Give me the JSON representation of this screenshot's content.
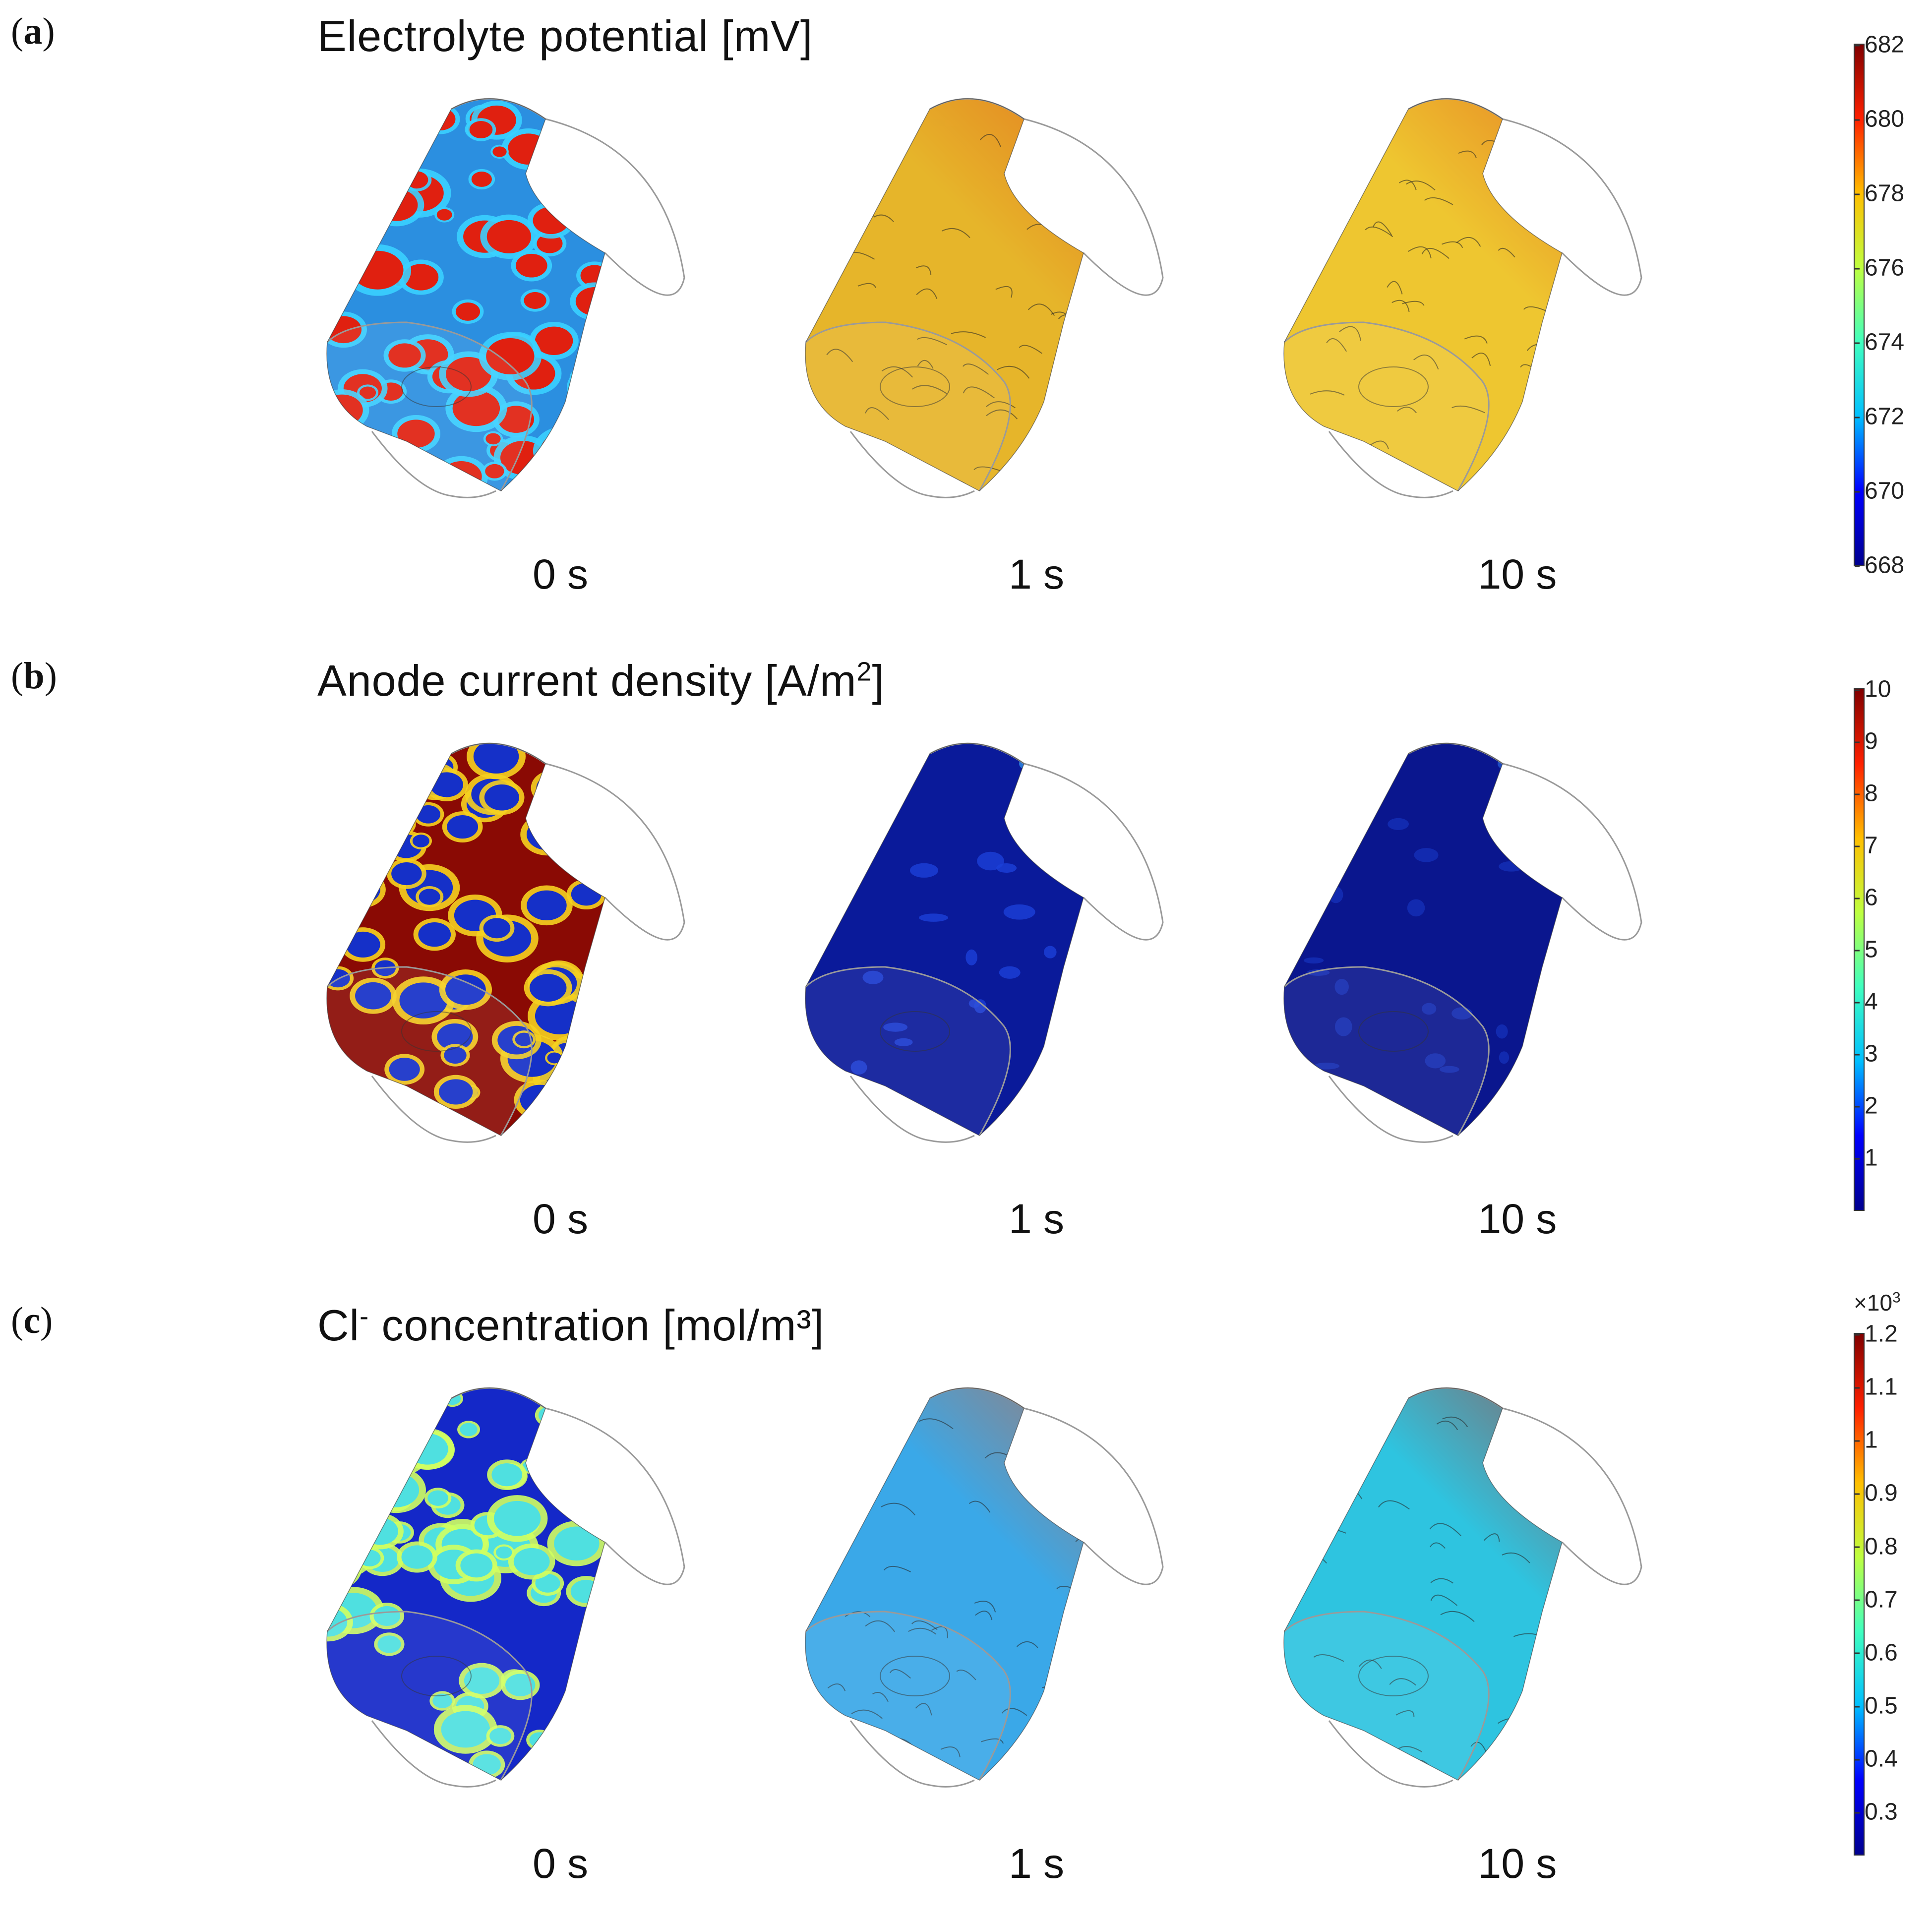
{
  "panels": [
    {
      "id": "a",
      "label_open": "(",
      "label_letter": "a",
      "label_close": ")",
      "title_main": "Electrolyte potential [mV]",
      "title_sup": "",
      "title_after": "",
      "times": [
        "0 s",
        "1 s",
        "10 s"
      ],
      "colorbar": {
        "min": 668,
        "max": 682,
        "ticks": [
          "682",
          "680",
          "678",
          "676",
          "674",
          "672",
          "670",
          "668"
        ],
        "tick_values": [
          682,
          680,
          678,
          676,
          674,
          672,
          670,
          668
        ],
        "exponent": ""
      },
      "fields": [
        {
          "base": "#2b8fe0",
          "patch": "#e02010",
          "edge": "#3ad0ff",
          "style": "patchy"
        },
        {
          "base": "#e6b52a",
          "patch": "#e2551a",
          "edge": "#7fd0a0",
          "style": "gradient"
        },
        {
          "base": "#eec630",
          "patch": "#e2561c",
          "edge": "#d84020",
          "style": "gradient"
        }
      ]
    },
    {
      "id": "b",
      "label_open": "(",
      "label_letter": "b",
      "label_close": ")",
      "title_main": "Anode current density [A/m",
      "title_sup": "2",
      "title_after": "]",
      "times": [
        "0 s",
        "1 s",
        "10 s"
      ],
      "colorbar": {
        "min": 0,
        "max": 10,
        "ticks": [
          "10",
          "9",
          "8",
          "7",
          "6",
          "5",
          "4",
          "3",
          "2",
          "1"
        ],
        "tick_values": [
          10,
          9,
          8,
          7,
          6,
          5,
          4,
          3,
          2,
          1
        ],
        "exponent": ""
      },
      "fields": [
        {
          "base": "#8a0a04",
          "patch": "#1530c8",
          "edge": "#f5d020",
          "style": "patchy"
        },
        {
          "base": "#0a1a9a",
          "patch": "#1b40d8",
          "edge": "#3ab0ff",
          "style": "flat"
        },
        {
          "base": "#0a168e",
          "patch": "#1430b8",
          "edge": "#2a70e8",
          "style": "flat"
        }
      ]
    },
    {
      "id": "c",
      "label_open": "(",
      "label_letter": "c",
      "label_close": ")",
      "title_main": "Cl",
      "title_sup": "-",
      "title_after": " concentration [mol/m³]",
      "times": [
        "0 s",
        "1 s",
        "10 s"
      ],
      "colorbar": {
        "min": 0.22,
        "max": 1.2,
        "ticks": [
          "1.2",
          "1.1",
          "1",
          "0.9",
          "0.8",
          "0.7",
          "0.6",
          "0.5",
          "0.4",
          "0.3"
        ],
        "tick_values": [
          1.2,
          1.1,
          1.0,
          0.9,
          0.8,
          0.7,
          0.6,
          0.5,
          0.4,
          0.3
        ],
        "exponent": "×10",
        "exponent_power": "3"
      },
      "fields": [
        {
          "base": "#1428c8",
          "patch": "#4fe0e0",
          "edge": "#d0ff60",
          "style": "patchy"
        },
        {
          "base": "#3aa8e8",
          "patch": "#e85a20",
          "edge": "#1a5ce0",
          "style": "gradient"
        },
        {
          "base": "#2ec4e0",
          "patch": "#c82010",
          "edge": "#1a60e0",
          "style": "gradient"
        }
      ]
    }
  ],
  "colormap": [
    "#00008f",
    "#0000ff",
    "#00bfff",
    "#40ffbf",
    "#bfff40",
    "#ffbf00",
    "#ff2000",
    "#800000"
  ]
}
